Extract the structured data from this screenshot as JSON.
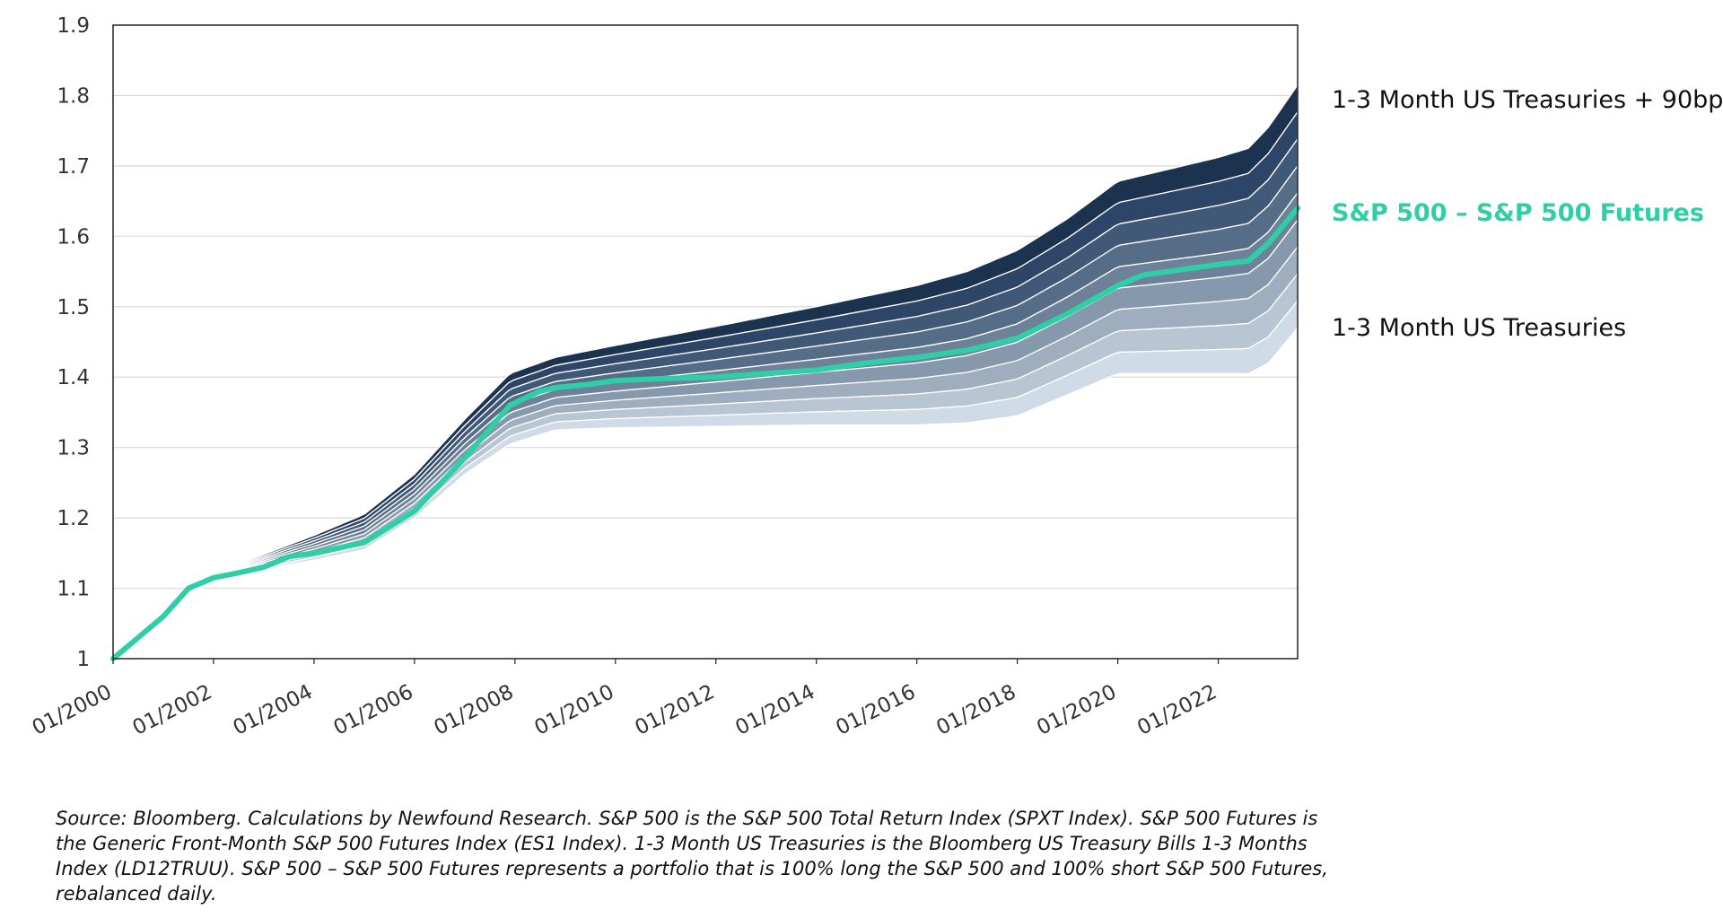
{
  "chart_data": {
    "type": "area",
    "title": "",
    "xlabel": "",
    "ylabel": "",
    "ylim": [
      1,
      1.9
    ],
    "yticks": [
      "1",
      "1.1",
      "1.2",
      "1.3",
      "1.4",
      "1.5",
      "1.6",
      "1.7",
      "1.8",
      "1.9"
    ],
    "xlim": [
      2000.0,
      2023.58
    ],
    "xticks": [
      {
        "label": "01/2000",
        "x": 2000
      },
      {
        "label": "01/2002",
        "x": 2002
      },
      {
        "label": "01/2004",
        "x": 2004
      },
      {
        "label": "01/2006",
        "x": 2006
      },
      {
        "label": "01/2008",
        "x": 2008
      },
      {
        "label": "01/2010",
        "x": 2010
      },
      {
        "label": "01/2012",
        "x": 2012
      },
      {
        "label": "01/2014",
        "x": 2014
      },
      {
        "label": "01/2016",
        "x": 2016
      },
      {
        "label": "01/2018",
        "x": 2018
      },
      {
        "label": "01/2020",
        "x": 2020
      },
      {
        "label": "01/2022",
        "x": 2022
      }
    ],
    "grid": "horizontal",
    "band_colors": [
      "#1c3350",
      "#2d4566",
      "#405977",
      "#566d88",
      "#6d8299",
      "#8698ac",
      "#9faebf",
      "#b8c6d3",
      "#cfdbe7"
    ],
    "series": [
      {
        "name": "1-3 Month US Treasuries + 90bp",
        "color": "#1c3350",
        "x": [
          2000,
          2001,
          2001.6,
          2002,
          2003,
          2004,
          2005,
          2006,
          2007,
          2007.9,
          2008.8,
          2010,
          2012,
          2014,
          2016,
          2017,
          2018,
          2019,
          2020,
          2021,
          2022,
          2022.6,
          2023,
          2023.58
        ],
        "y": [
          1.0,
          1.07,
          1.105,
          1.118,
          1.148,
          1.175,
          1.205,
          1.262,
          1.34,
          1.405,
          1.428,
          1.445,
          1.472,
          1.5,
          1.53,
          1.55,
          1.58,
          1.625,
          1.678,
          1.695,
          1.712,
          1.725,
          1.755,
          1.815
        ]
      },
      {
        "name": "S&P 500 – S&P 500 Futures",
        "color": "#2ecfa7",
        "x": [
          2000,
          2000.5,
          2001,
          2001.5,
          2002,
          2002.5,
          2003,
          2003.5,
          2004,
          2005,
          2006,
          2007,
          2007.9,
          2008.5,
          2008.8,
          2009.5,
          2010,
          2011,
          2012,
          2013,
          2014,
          2015,
          2016,
          2017,
          2018,
          2019,
          2020,
          2020.5,
          2021,
          2022,
          2022.6,
          2023,
          2023.58
        ],
        "y": [
          1.0,
          1.03,
          1.06,
          1.1,
          1.115,
          1.122,
          1.13,
          1.145,
          1.15,
          1.165,
          1.21,
          1.285,
          1.36,
          1.38,
          1.385,
          1.39,
          1.395,
          1.398,
          1.4,
          1.405,
          1.41,
          1.42,
          1.428,
          1.438,
          1.455,
          1.49,
          1.53,
          1.545,
          1.55,
          1.56,
          1.565,
          1.59,
          1.64
        ]
      },
      {
        "name": "1-3 Month US Treasuries",
        "color": "#cfdbe7",
        "x": [
          2000,
          2001,
          2001.6,
          2002,
          2003,
          2004,
          2005,
          2006,
          2007,
          2007.9,
          2008.8,
          2010,
          2012,
          2014,
          2016,
          2017,
          2018,
          2019,
          2020,
          2021,
          2022,
          2022.6,
          2023,
          2023.58
        ],
        "y": [
          1.0,
          1.062,
          1.095,
          1.108,
          1.128,
          1.14,
          1.155,
          1.2,
          1.262,
          1.305,
          1.325,
          1.328,
          1.33,
          1.332,
          1.332,
          1.335,
          1.345,
          1.375,
          1.405,
          1.405,
          1.405,
          1.405,
          1.42,
          1.47
        ]
      }
    ],
    "legend_position": "right"
  },
  "source_note": "Source: Bloomberg.  Calculations by Newfound Research.  S&P 500 is the S&P 500 Total Return Index (SPXT Index).  S&P 500 Futures is the Generic Front-Month S&P 500 Futures Index (ES1 Index).  1-3 Month US Treasuries is the Bloomberg US Treasury Bills 1-3 Months Index (LD12TRUU).  S&P 500 – S&P 500 Futures represents a portfolio that is 100% long the S&P 500 and 100% short S&P 500 Futures, rebalanced daily."
}
